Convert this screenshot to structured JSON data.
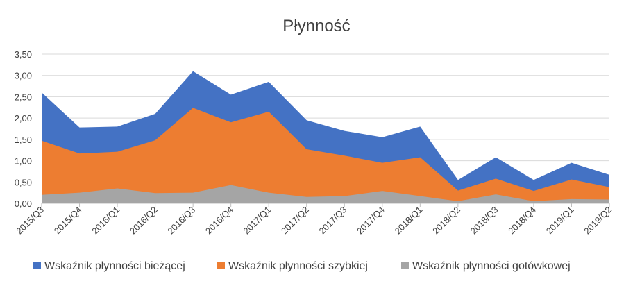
{
  "chart_data": {
    "type": "area",
    "title": "Płynność",
    "xlabel": "",
    "ylabel": "",
    "ylim": [
      0,
      3.5
    ],
    "yticks": [
      "0,00",
      "0,50",
      "1,00",
      "1,50",
      "2,00",
      "2,50",
      "3,00",
      "3,50"
    ],
    "ytick_values": [
      0,
      0.5,
      1.0,
      1.5,
      2.0,
      2.5,
      3.0,
      3.5
    ],
    "grid": true,
    "legend": "bottom",
    "categories": [
      "2015/Q3",
      "2015/Q4",
      "2016/Q1",
      "2016/Q2",
      "2016/Q3",
      "2016/Q4",
      "2017/Q1",
      "2017/Q2",
      "2017/Q3",
      "2017/Q4",
      "2018/Q1",
      "2018/Q2",
      "2018/Q3",
      "2018/Q4",
      "2019/Q1",
      "2019/Q2"
    ],
    "series": [
      {
        "name": "Wskaźnik płynności bieżącej",
        "color": "#4472c4",
        "values": [
          2.6,
          1.78,
          1.8,
          2.1,
          3.1,
          2.55,
          2.85,
          1.95,
          1.7,
          1.55,
          1.8,
          0.55,
          1.08,
          0.55,
          0.95,
          0.67
        ]
      },
      {
        "name": "Wskaźnik płynności szybkiej",
        "color": "#ed7d31",
        "values": [
          1.47,
          1.17,
          1.21,
          1.48,
          2.24,
          1.9,
          2.15,
          1.27,
          1.12,
          0.95,
          1.08,
          0.3,
          0.58,
          0.29,
          0.56,
          0.38
        ]
      },
      {
        "name": "Wskaźnik płynności gotówkowej",
        "color": "#a5a5a5",
        "values": [
          0.2,
          0.25,
          0.35,
          0.24,
          0.25,
          0.43,
          0.25,
          0.15,
          0.17,
          0.29,
          0.17,
          0.05,
          0.21,
          0.05,
          0.1,
          0.09
        ]
      }
    ]
  }
}
